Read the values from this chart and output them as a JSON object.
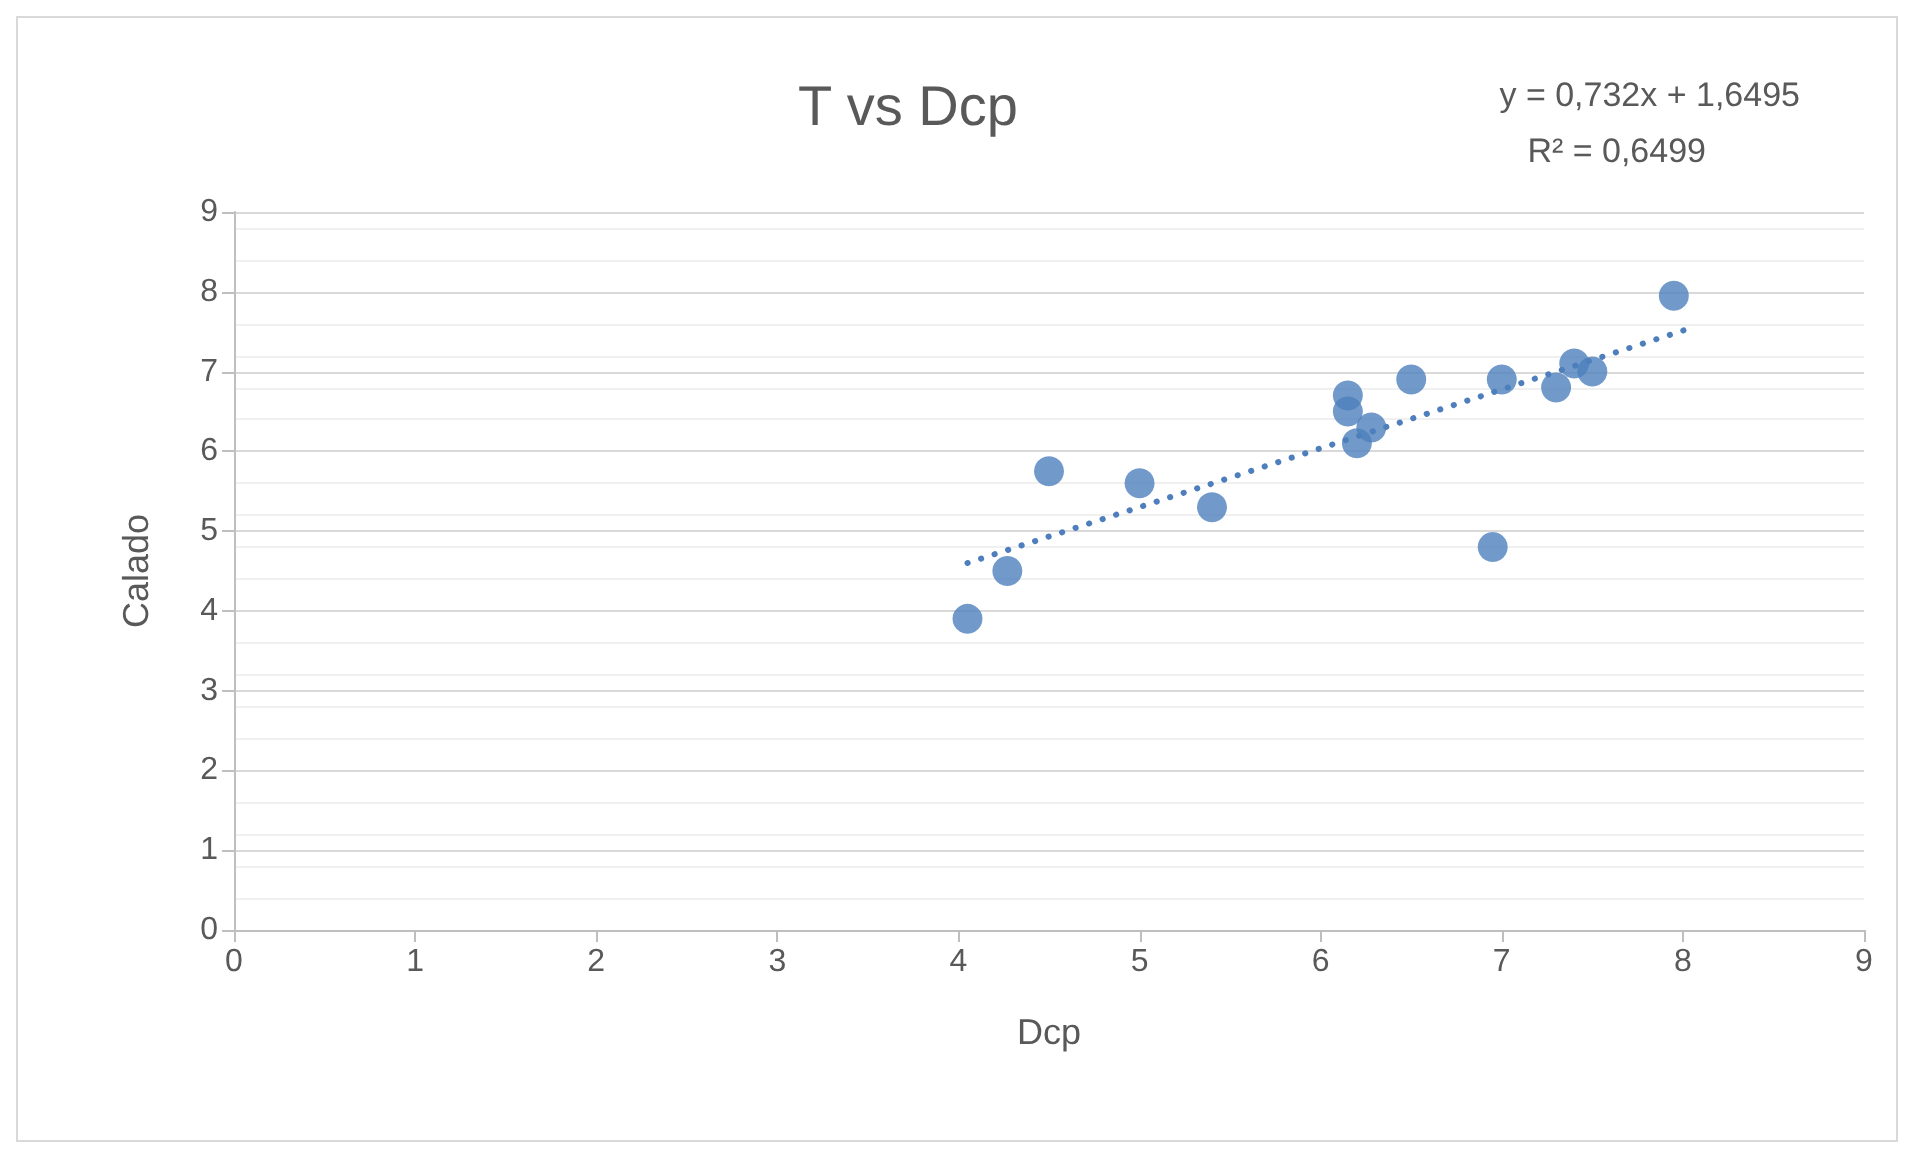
{
  "chart_data": {
    "type": "scatter",
    "title": "T vs Dcp",
    "xlabel": "Dcp",
    "ylabel": "Calado",
    "annotations": [
      "y = 0,732x + 1,6495",
      "R² = 0,6499"
    ],
    "xlim": [
      0,
      9
    ],
    "xticks": [
      0,
      1,
      2,
      3,
      4,
      5,
      6,
      7,
      8,
      9
    ],
    "ylim": [
      0,
      9
    ],
    "yticks": [
      0,
      1,
      2,
      3,
      4,
      5,
      6,
      7,
      8,
      9
    ],
    "grid": "y",
    "marker": "circle",
    "series": [
      {
        "color": "#4e7fbc",
        "x": [
          4.05,
          4.27,
          4.5,
          5.0,
          5.4,
          6.15,
          6.15,
          6.2,
          6.28,
          6.5,
          6.95,
          7.0,
          7.3,
          7.4,
          7.5,
          7.95
        ],
        "values": [
          3.9,
          4.5,
          5.75,
          5.6,
          5.3,
          6.7,
          6.5,
          6.1,
          6.3,
          6.9,
          4.8,
          6.9,
          6.8,
          7.1,
          7.0,
          7.95
        ]
      },
      {
        "type": "line",
        "color": "#4e7fbc",
        "line_style": "dotted",
        "marker": "none",
        "x": [
          4.05,
          8.05
        ],
        "values": [
          4.6,
          7.55
        ]
      }
    ]
  }
}
